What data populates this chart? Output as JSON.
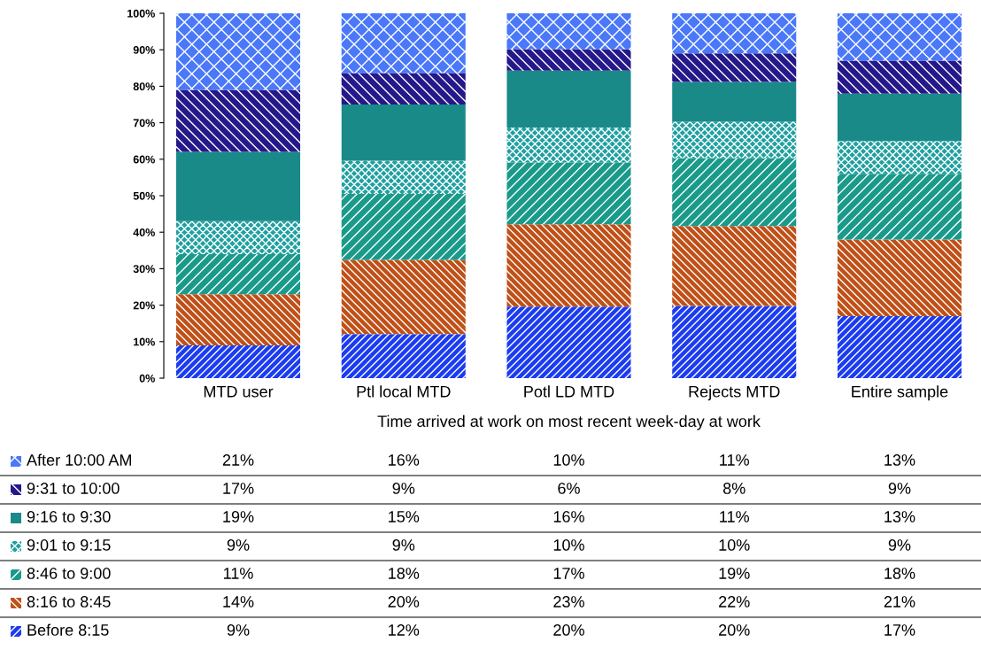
{
  "chart_data": {
    "type": "bar",
    "stacked": true,
    "xlabel": "Time arrived at work on most recent week-day at work",
    "categories": [
      "MTD user",
      "Ptl local MTD",
      "Potl LD MTD",
      "Rejects MTD",
      "Entire sample"
    ],
    "ylim": [
      0,
      100
    ],
    "yticks": [
      {
        "value": 0,
        "label": "0%"
      },
      {
        "value": 10,
        "label": "10%"
      },
      {
        "value": 20,
        "label": "20%"
      },
      {
        "value": 30,
        "label": "30%"
      },
      {
        "value": 40,
        "label": "40%"
      },
      {
        "value": 50,
        "label": "50%"
      },
      {
        "value": 60,
        "label": "60%"
      },
      {
        "value": 70,
        "label": "70%"
      },
      {
        "value": 80,
        "label": "80%"
      },
      {
        "value": 90,
        "label": "90%"
      },
      {
        "value": 100,
        "label": "100%"
      }
    ],
    "series": [
      {
        "name": "Before 8:15",
        "color": "#1c3cf0",
        "values": [
          9,
          12.1,
          19.6,
          19.8,
          17
        ],
        "value_labels": [
          "9%",
          "12%",
          "20%",
          "20%",
          "17%"
        ]
      },
      {
        "name": "8:16 to 8:45",
        "color": "#c05018",
        "values": [
          14,
          20.3,
          22.6,
          21.9,
          21
        ],
        "value_labels": [
          "14%",
          "20%",
          "23%",
          "22%",
          "21%"
        ]
      },
      {
        "name": "8:46 to 9:00",
        "color": "#1a9a8a",
        "values": [
          11,
          18.1,
          16.9,
          18.6,
          18
        ],
        "value_labels": [
          "11%",
          "18%",
          "17%",
          "19%",
          "18%"
        ]
      },
      {
        "name": "9:01 to 9:15",
        "color": "#20a0a0",
        "values": [
          9,
          9.1,
          9.6,
          10,
          9
        ],
        "value_labels": [
          "9%",
          "9%",
          "10%",
          "10%",
          "9%"
        ]
      },
      {
        "name": "9:16 to 9:30",
        "color": "#1a8a88",
        "values": [
          19,
          15.4,
          15.6,
          10.9,
          13
        ],
        "value_labels": [
          "19%",
          "15%",
          "16%",
          "11%",
          "13%"
        ]
      },
      {
        "name": "9:31 to 10:00",
        "color": "#24188a",
        "values": [
          17,
          8.6,
          5.9,
          7.8,
          9
        ],
        "value_labels": [
          "17%",
          "9%",
          "6%",
          "8%",
          "9%"
        ]
      },
      {
        "name": "After 10:00 AM",
        "color": "#4a78f8",
        "values": [
          21,
          16.4,
          9.8,
          11,
          13
        ],
        "value_labels": [
          "21%",
          "16%",
          "10%",
          "11%",
          "13%"
        ]
      }
    ],
    "legend": "bottom",
    "grid": false
  }
}
